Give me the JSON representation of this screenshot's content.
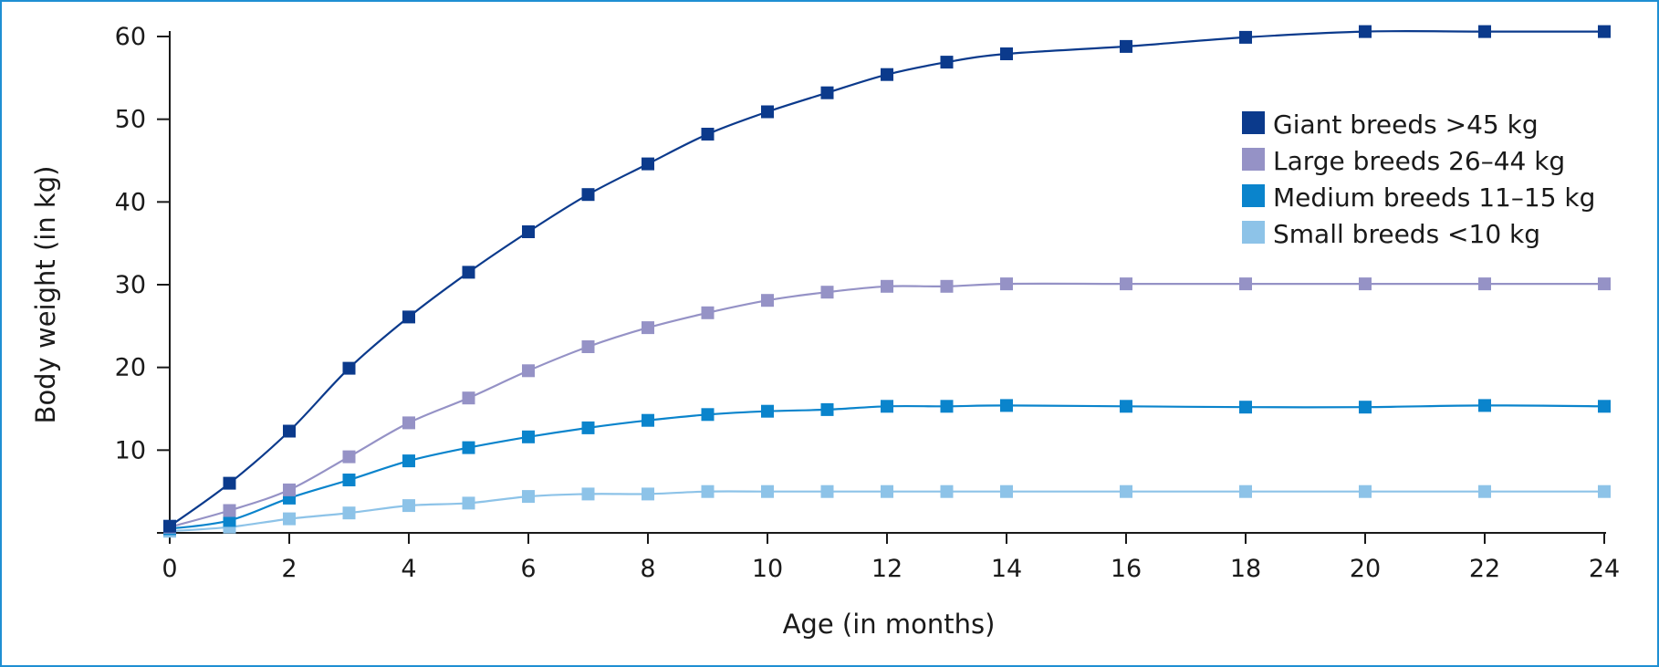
{
  "chart_data": {
    "type": "line",
    "title": "",
    "xlabel": "Age (in months)",
    "ylabel": "Body weight (in kg)",
    "xlim": [
      0,
      24
    ],
    "ylim": [
      0,
      60
    ],
    "xticks": [
      0,
      2,
      4,
      6,
      8,
      10,
      12,
      14,
      16,
      18,
      20,
      22,
      24
    ],
    "yticks": [
      10,
      20,
      30,
      40,
      50,
      60
    ],
    "grid": false,
    "legend_position": "top-right",
    "series": [
      {
        "name": "Giant breeds >45 kg",
        "color": "#0b3a8c",
        "x": [
          0,
          1,
          2,
          3,
          4,
          5,
          6,
          7,
          8,
          9,
          10,
          11,
          12,
          13,
          14,
          16,
          18,
          20,
          22,
          24
        ],
        "y": [
          0.8,
          6.0,
          12.3,
          19.9,
          26.1,
          31.5,
          36.4,
          40.9,
          44.6,
          48.2,
          50.9,
          53.2,
          55.4,
          56.9,
          57.9,
          58.8,
          59.9,
          60.6,
          60.6,
          60.6
        ]
      },
      {
        "name": "Large breeds 26–44 kg",
        "color": "#9592c6",
        "x": [
          0,
          1,
          2,
          3,
          4,
          5,
          6,
          7,
          8,
          9,
          10,
          11,
          12,
          13,
          14,
          16,
          18,
          20,
          22,
          24
        ],
        "y": [
          0.7,
          2.7,
          5.2,
          9.2,
          13.3,
          16.3,
          19.6,
          22.5,
          24.8,
          26.6,
          28.1,
          29.1,
          29.8,
          29.8,
          30.1,
          30.1,
          30.1,
          30.1,
          30.1,
          30.1
        ]
      },
      {
        "name": "Medium breeds 11–15 kg",
        "color": "#0a84cc",
        "x": [
          0,
          1,
          2,
          3,
          4,
          5,
          6,
          7,
          8,
          9,
          10,
          11,
          12,
          13,
          14,
          16,
          18,
          20,
          22,
          24
        ],
        "y": [
          0.5,
          1.5,
          4.2,
          6.4,
          8.7,
          10.3,
          11.6,
          12.7,
          13.6,
          14.3,
          14.7,
          14.9,
          15.3,
          15.3,
          15.4,
          15.3,
          15.2,
          15.2,
          15.4,
          15.3
        ]
      },
      {
        "name": "Small breeds <10 kg",
        "color": "#8dc3e8",
        "x": [
          0,
          1,
          2,
          3,
          4,
          5,
          6,
          7,
          8,
          9,
          10,
          11,
          12,
          13,
          14,
          16,
          18,
          20,
          22,
          24
        ],
        "y": [
          0.2,
          0.7,
          1.7,
          2.4,
          3.3,
          3.6,
          4.4,
          4.7,
          4.7,
          5.0,
          5.0,
          5.0,
          5.0,
          5.0,
          5.0,
          5.0,
          5.0,
          5.0,
          5.0,
          5.0
        ]
      }
    ]
  }
}
